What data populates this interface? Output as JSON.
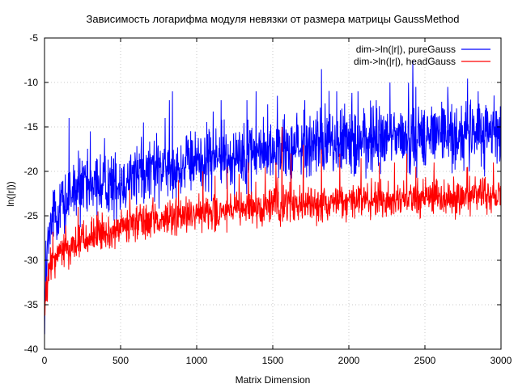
{
  "chart_data": {
    "type": "line",
    "title": "Зависимость логарифма модуля невязки от размера матрицы GaussMethod",
    "xlabel": "Matrix Dimension",
    "ylabel": "ln(|r|))",
    "xlim": [
      0,
      3000
    ],
    "ylim": [
      -40,
      -5
    ],
    "xticks": [
      0,
      500,
      1000,
      1500,
      2000,
      2500,
      3000
    ],
    "yticks": [
      -40,
      -35,
      -30,
      -25,
      -20,
      -15,
      -10,
      -5
    ],
    "xtick_labels": [
      "0",
      "500",
      "1000",
      "1500",
      "2000",
      "2500",
      "3000"
    ],
    "ytick_labels": [
      "-40",
      "-35",
      "-30",
      "-25",
      "-20",
      "-15",
      "-10",
      "-5"
    ],
    "grid": true,
    "legend_position": "top-right",
    "series": [
      {
        "name": "dim->ln(|r|), pureGauss",
        "color": "#0000ff",
        "x": [
          1,
          25,
          50,
          100,
          150,
          200,
          300,
          400,
          500,
          600,
          700,
          800,
          900,
          1000,
          1100,
          1200,
          1300,
          1400,
          1500,
          1600,
          1700,
          1800,
          1900,
          2000,
          2100,
          2200,
          2300,
          2400,
          2500,
          2600,
          2700,
          2800,
          2900,
          3000
        ],
        "y": [
          -35,
          -28,
          -26,
          -24,
          -23.5,
          -22.5,
          -22,
          -21.5,
          -21,
          -20.5,
          -20,
          -19.8,
          -19.5,
          -19,
          -18.8,
          -18.5,
          -18.2,
          -18,
          -17.8,
          -17.5,
          -17.3,
          -17,
          -16.9,
          -16.8,
          -16.6,
          -16.5,
          -16.3,
          -16.2,
          -16,
          -16,
          -15.9,
          -15.8,
          -15.7,
          -15.6
        ],
        "noise": 1.8,
        "spikes": [
          [
            160,
            -14
          ],
          [
            300,
            -15.5
          ],
          [
            650,
            -14.5
          ],
          [
            820,
            -12
          ],
          [
            840,
            -11
          ],
          [
            1160,
            -12
          ],
          [
            1330,
            -12
          ],
          [
            1390,
            -11
          ],
          [
            1530,
            -11.5
          ],
          [
            1710,
            -12
          ],
          [
            1820,
            -8.5
          ],
          [
            1920,
            -11
          ],
          [
            2060,
            -11
          ],
          [
            2180,
            -12
          ],
          [
            2270,
            -10
          ],
          [
            2420,
            -7.5
          ],
          [
            2440,
            -10.5
          ],
          [
            2650,
            -10.5
          ],
          [
            2850,
            -11
          ]
        ]
      },
      {
        "name": "dim->ln(|r|), headGauss",
        "color": "#ff0000",
        "x": [
          1,
          25,
          50,
          100,
          150,
          200,
          300,
          400,
          500,
          600,
          700,
          800,
          900,
          1000,
          1100,
          1200,
          1300,
          1400,
          1500,
          1600,
          1700,
          1800,
          1900,
          2000,
          2100,
          2200,
          2300,
          2400,
          2500,
          2600,
          2700,
          2800,
          2900,
          3000
        ],
        "y": [
          -36,
          -32,
          -30,
          -29,
          -28.5,
          -28,
          -27.5,
          -27,
          -26.5,
          -26,
          -25.7,
          -25.4,
          -25.2,
          -25,
          -24.8,
          -24.6,
          -24.4,
          -24.2,
          -24,
          -23.9,
          -23.8,
          -23.7,
          -23.6,
          -23.5,
          -23.4,
          -23.3,
          -23.2,
          -23.1,
          -23,
          -23,
          -22.9,
          -22.8,
          -22.7,
          -22.6
        ],
        "noise": 1.0,
        "spikes": [
          [
            220,
            -24
          ],
          [
            350,
            -24.5
          ],
          [
            560,
            -22
          ],
          [
            880,
            -21
          ],
          [
            1040,
            -20
          ],
          [
            1120,
            -20.5
          ],
          [
            1200,
            -19.5
          ],
          [
            1340,
            -19
          ],
          [
            1450,
            -19.5
          ],
          [
            1520,
            -19
          ],
          [
            1560,
            -15
          ],
          [
            1620,
            -18
          ],
          [
            1700,
            -17
          ],
          [
            1820,
            -17.5
          ],
          [
            1940,
            -18
          ],
          [
            2080,
            -18.5
          ],
          [
            2200,
            -19
          ],
          [
            2300,
            -19
          ],
          [
            2380,
            -18
          ],
          [
            2440,
            -19.5
          ],
          [
            2560,
            -19
          ],
          [
            2780,
            -19.5
          ],
          [
            2950,
            -19
          ]
        ]
      }
    ]
  }
}
